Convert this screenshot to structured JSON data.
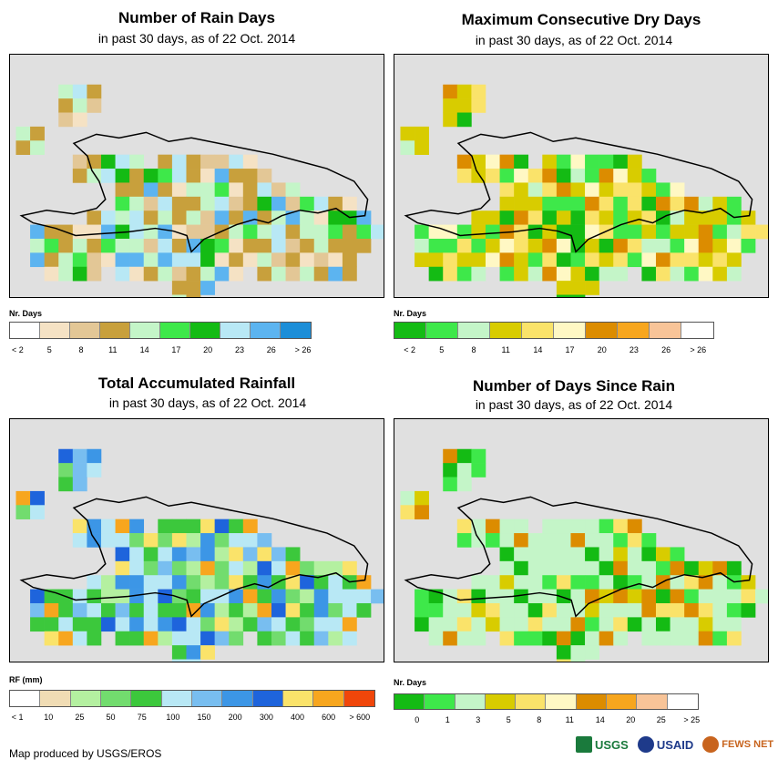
{
  "panels": {
    "rain_days": {
      "title": "Number of Rain Days",
      "subtitle": "in past 30 days, as of 22 Oct. 2014",
      "legend_title": "Nr. Days",
      "legend_colors": [
        "#ffffff",
        "#f5e2c4",
        "#e3c796",
        "#c8a03c",
        "#c4f5c8",
        "#3ee84a",
        "#14bb14",
        "#b8e8f5",
        "#5cb4f0",
        "#1c8ed8"
      ],
      "legend_labels": [
        "< 2",
        "5",
        "8",
        "11",
        "14",
        "17",
        "20",
        "23",
        "26",
        "> 26"
      ]
    },
    "dry_days": {
      "title": "Maximum Consecutive Dry Days",
      "subtitle": "in past 30 days, as of 22 Oct. 2014",
      "legend_title": "Nr. Days",
      "legend_colors": [
        "#14bb14",
        "#3ee84a",
        "#c4f5c8",
        "#d8cc00",
        "#fae36a",
        "#fff8c4",
        "#dc8c00",
        "#f7a61e",
        "#f8c498",
        "#ffffff"
      ],
      "legend_labels": [
        "< 2",
        "5",
        "8",
        "11",
        "14",
        "17",
        "20",
        "23",
        "26",
        "> 26"
      ]
    },
    "rainfall": {
      "title": "Total Accumulated Rainfall",
      "subtitle": "in past 30 days, as of 22 Oct. 2014",
      "legend_title": "RF (mm)",
      "legend_colors": [
        "#ffffff",
        "#f0dcb4",
        "#b4f0a0",
        "#72dc6e",
        "#3cc83c",
        "#b8e8f5",
        "#78bef0",
        "#3c96e6",
        "#1e64dc",
        "#fae36a",
        "#f7a61e",
        "#f0460a"
      ],
      "legend_labels": [
        "< 1",
        "10",
        "25",
        "50",
        "75",
        "100",
        "150",
        "200",
        "300",
        "400",
        "600",
        "> 600"
      ]
    },
    "since_rain": {
      "title": "Number of Days Since Rain",
      "subtitle": "in past 30 days, as of 22 Oct. 2014",
      "legend_title": "Nr. Days",
      "legend_colors": [
        "#14bb14",
        "#3ee84a",
        "#c4f5c8",
        "#d8cc00",
        "#fae36a",
        "#fff8c4",
        "#dc8c00",
        "#f7a61e",
        "#f8c498",
        "#ffffff"
      ],
      "legend_labels": [
        "0",
        "1",
        "3",
        "5",
        "8",
        "11",
        "14",
        "20",
        "25",
        "> 25"
      ]
    }
  },
  "footer": {
    "credit": "Map produced by USGS/EROS"
  },
  "logos": {
    "usgs": "USGS",
    "usaid": "USAID",
    "fews": "FEWS NET"
  },
  "colors": {
    "ocean": "#e0e0e0",
    "coast": "#000000"
  }
}
